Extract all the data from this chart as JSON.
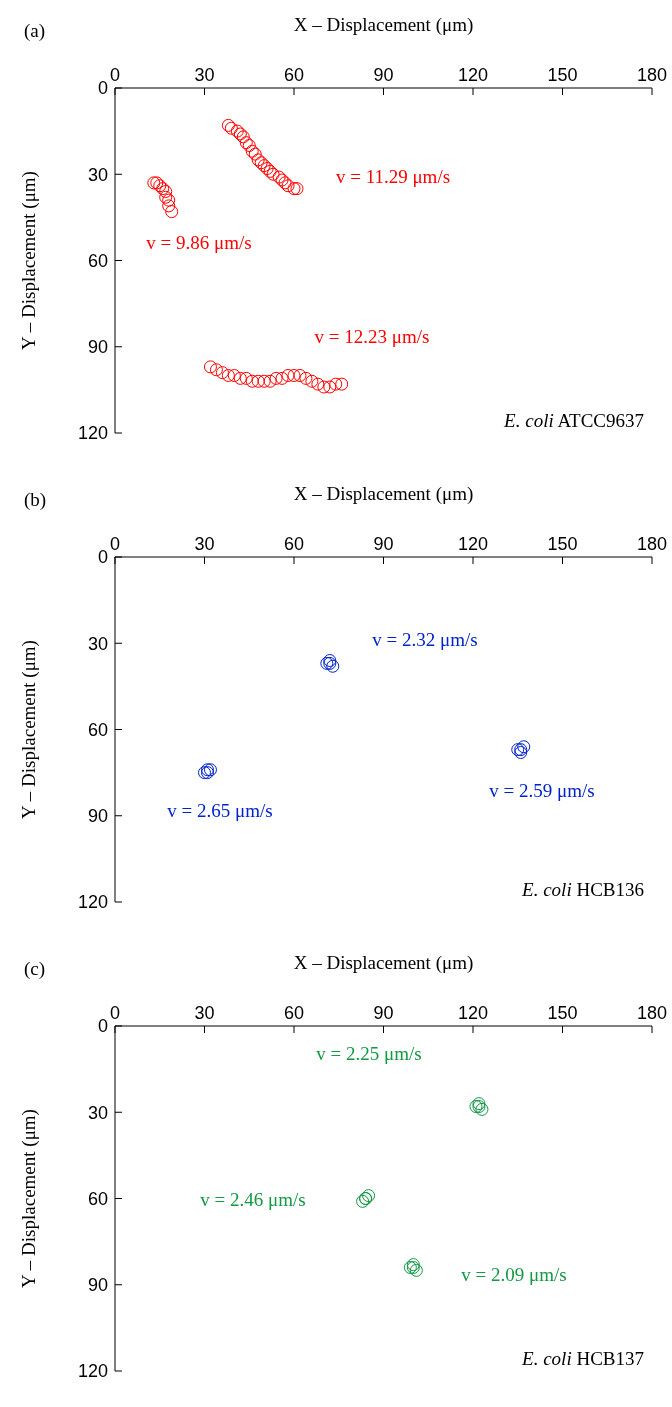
{
  "chart_data": [
    {
      "type": "scatter",
      "title": "(a)",
      "xlabel": "X – Displacement (μm)",
      "ylabel": "Y – Displacement (μm)",
      "xlim": [
        0,
        180
      ],
      "xticks": [
        0,
        30,
        60,
        90,
        120,
        150,
        180
      ],
      "ylim": [
        120,
        0
      ],
      "yticks": [
        0,
        30,
        60,
        90,
        120
      ],
      "grid": false,
      "legend": false,
      "marker": "circle",
      "series": [
        {
          "color": "#ff0000",
          "x": [
            13,
            14,
            15,
            16,
            17,
            17,
            18,
            18,
            19
          ],
          "values": [
            33,
            33,
            34,
            35,
            36,
            38,
            39,
            41,
            43
          ]
        },
        {
          "color": "#ff0000",
          "x": [
            38,
            39,
            41,
            42,
            43,
            44,
            45,
            46,
            47,
            48,
            49,
            50,
            51,
            52,
            53,
            55,
            56,
            57,
            58,
            60,
            61
          ],
          "values": [
            13,
            14,
            15,
            16,
            17,
            19,
            20,
            22,
            23,
            25,
            26,
            27,
            28,
            29,
            30,
            31,
            32,
            33,
            34,
            35,
            35
          ]
        },
        {
          "color": "#ff0000",
          "x": [
            32,
            34,
            36,
            38,
            40,
            42,
            44,
            46,
            48,
            50,
            52,
            54,
            56,
            58,
            60,
            62,
            64,
            66,
            68,
            70,
            72,
            74,
            76
          ],
          "values": [
            97,
            98,
            99,
            100,
            100,
            101,
            101,
            102,
            102,
            102,
            102,
            101,
            101,
            100,
            100,
            100,
            101,
            102,
            103,
            104,
            104,
            103,
            103
          ]
        }
      ],
      "annotations": [
        "v = 9.86 μm/s",
        "v = 11.29 μm/s",
        "v = 12.23 μm/s",
        "E. coli ATCC9637"
      ]
    },
    {
      "type": "scatter",
      "title": "(b)",
      "xlabel": "X – Displacement (μm)",
      "ylabel": "Y – Displacement (μm)",
      "xlim": [
        0,
        180
      ],
      "xticks": [
        0,
        30,
        60,
        90,
        120,
        150,
        180
      ],
      "ylim": [
        120,
        0
      ],
      "yticks": [
        0,
        30,
        60,
        90,
        120
      ],
      "grid": false,
      "legend": false,
      "marker": "circle",
      "series": [
        {
          "color": "#0022cc",
          "x": [
            71,
            72,
            73,
            72
          ],
          "values": [
            37,
            36,
            38,
            37
          ]
        },
        {
          "color": "#0022cc",
          "x": [
            31,
            32,
            30,
            31
          ],
          "values": [
            74,
            74,
            75,
            75
          ]
        },
        {
          "color": "#0022cc",
          "x": [
            136,
            137,
            135,
            136
          ],
          "values": [
            67,
            66,
            67,
            68
          ]
        }
      ],
      "annotations": [
        "v = 2.32 μm/s",
        "v = 2.65 μm/s",
        "v = 2.59 μm/s",
        "E. coli HCB136"
      ]
    },
    {
      "type": "scatter",
      "title": "(c)",
      "xlabel": "X – Displacement (μm)",
      "ylabel": "Y – Displacement (μm)",
      "xlim": [
        0,
        180
      ],
      "xticks": [
        0,
        30,
        60,
        90,
        120,
        150,
        180
      ],
      "ylim": [
        120,
        0
      ],
      "yticks": [
        0,
        30,
        60,
        90,
        120
      ],
      "grid": false,
      "legend": false,
      "marker": "circle",
      "series": [
        {
          "color": "#119944",
          "x": [
            122,
            123,
            121,
            122
          ],
          "values": [
            28,
            29,
            28,
            27
          ]
        },
        {
          "color": "#119944",
          "x": [
            84,
            83,
            85,
            84
          ],
          "values": [
            60,
            61,
            59,
            60
          ]
        },
        {
          "color": "#119944",
          "x": [
            100,
            101,
            99,
            100
          ],
          "values": [
            84,
            85,
            84,
            83
          ]
        }
      ],
      "annotations": [
        "v = 2.25 μm/s",
        "v = 2.46 μm/s",
        "v = 2.09 μm/s",
        "E. coli HCB137"
      ]
    }
  ]
}
